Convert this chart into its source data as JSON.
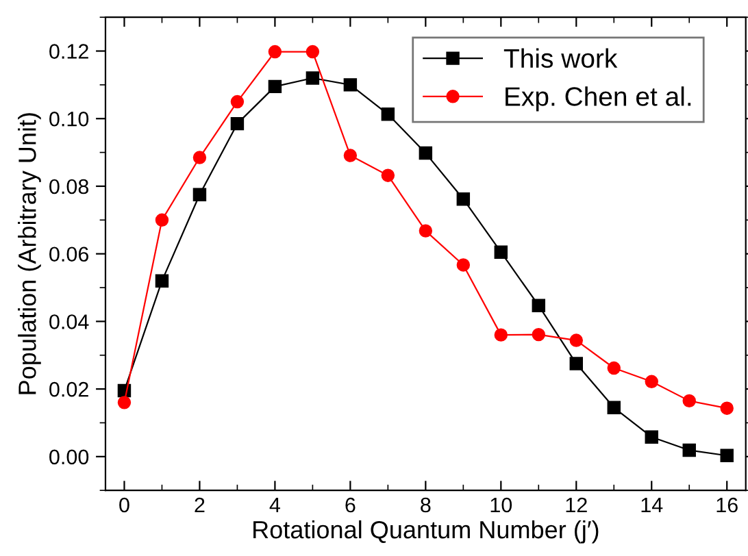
{
  "chart_data": {
    "type": "line",
    "xlabel": "Rotational Quantum Number (j′)",
    "ylabel": "Population (Arbitrary Unit)",
    "x": [
      0,
      1,
      2,
      3,
      4,
      5,
      6,
      7,
      8,
      9,
      10,
      11,
      12,
      13,
      14,
      15,
      16
    ],
    "series": [
      {
        "name": "This work",
        "color": "#000000",
        "marker": "square",
        "values": [
          0.0195,
          0.052,
          0.0775,
          0.0985,
          0.1095,
          0.112,
          0.11,
          0.1013,
          0.0898,
          0.0762,
          0.0605,
          0.0447,
          0.0275,
          0.0145,
          0.0058,
          0.0019,
          0.0003
        ]
      },
      {
        "name": "Exp. Chen et al.",
        "color": "#ff0000",
        "marker": "circle",
        "values": [
          0.016,
          0.07,
          0.0885,
          0.105,
          0.1198,
          0.1198,
          0.0891,
          0.0832,
          0.0668,
          0.0567,
          0.036,
          0.0361,
          0.0344,
          0.0262,
          0.0222,
          0.0165,
          0.0143
        ]
      }
    ],
    "xlim": [
      -0.5,
      16.5
    ],
    "ylim": [
      -0.01,
      0.13
    ],
    "xticks": [
      0,
      2,
      4,
      6,
      8,
      10,
      12,
      14,
      16
    ],
    "yticks": [
      {
        "value": 0,
        "label": "0.00"
      },
      {
        "value": 0.02,
        "label": "0.02"
      },
      {
        "value": 0.04,
        "label": "0.04"
      },
      {
        "value": 0.06,
        "label": "0.06"
      },
      {
        "value": 0.08,
        "label": "0.08"
      },
      {
        "value": 0.1,
        "label": "0.10"
      },
      {
        "value": 0.12,
        "label": "0.12"
      }
    ],
    "grid": false,
    "legend": "top right",
    "line_style": "solid"
  }
}
